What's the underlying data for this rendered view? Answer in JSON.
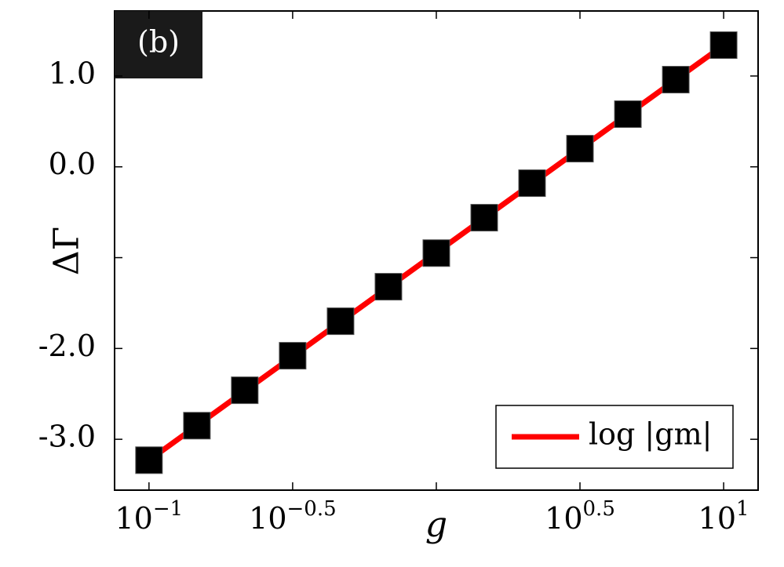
{
  "chart_data": {
    "type": "line",
    "xscale": "log",
    "annotation": "(b)",
    "xlabel": "g",
    "ylabel": "ΔΓ",
    "xlim": [
      0.0759,
      13.18
    ],
    "ylim": [
      -3.56,
      1.716
    ],
    "xticks": [
      {
        "value": 0.1,
        "base": "10",
        "exponent": "−1"
      },
      {
        "value": 0.3162,
        "base": "10",
        "exponent": "−0.5"
      },
      {
        "value": 1,
        "base": "",
        "exponent": ""
      },
      {
        "value": 3.162,
        "base": "10",
        "exponent": "0.5"
      },
      {
        "value": 10,
        "base": "10",
        "exponent": "1"
      }
    ],
    "yticks": [
      {
        "value": 1,
        "label": "1.0"
      },
      {
        "value": 0,
        "label": "0.0"
      },
      {
        "value": -1,
        "label": null
      },
      {
        "value": -2,
        "label": "-2.0"
      },
      {
        "value": -3,
        "label": "-3.0"
      }
    ],
    "legend": "lower right",
    "series": [
      {
        "name": "log |gm|",
        "color": "#ff0000",
        "x": [
          0.1,
          10
        ],
        "values": [
          -3.23,
          1.34
        ]
      },
      {
        "color": "#000000",
        "marker": "square",
        "x": [
          0.1,
          0.1468,
          0.2154,
          0.3162,
          0.4642,
          0.6813,
          1,
          1.468,
          2.154,
          3.162,
          4.642,
          6.813,
          10
        ],
        "values": [
          -3.23,
          -2.85,
          -2.46,
          -2.08,
          -1.7,
          -1.32,
          -0.95,
          -0.56,
          -0.18,
          0.2,
          0.58,
          0.96,
          1.34
        ]
      }
    ]
  }
}
